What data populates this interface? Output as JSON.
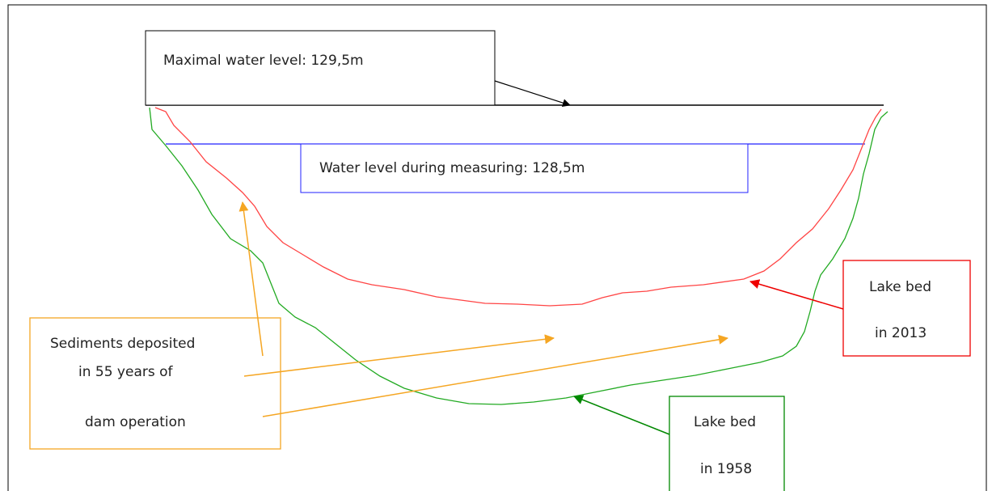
{
  "max_level": {
    "label": "Maximal water level: 129,5m"
  },
  "measuring_level": {
    "label": "Water level during measuring: 128,5m"
  },
  "sediments": {
    "lines": [
      "Sediments deposited",
      "in 55 years of",
      "dam operation"
    ]
  },
  "bed_2013": {
    "lines": [
      "Lake bed",
      "in 2013"
    ]
  },
  "bed_1958": {
    "lines": [
      "Lake bed",
      "in 1958"
    ]
  }
}
